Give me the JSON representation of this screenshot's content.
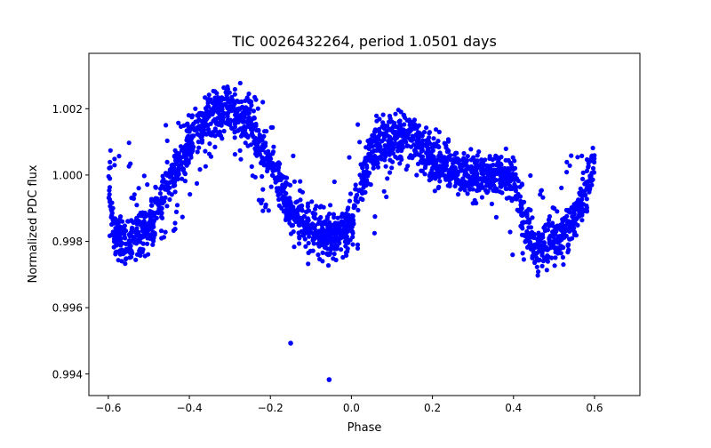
{
  "chart_data": {
    "type": "scatter",
    "title": "TIC 0026432264, period 1.0501 days",
    "xlabel": "Phase",
    "ylabel": "Normalized PDC flux",
    "xlim": [
      -0.648,
      0.712
    ],
    "ylim": [
      0.99335,
      1.00367
    ],
    "xticks": [
      -0.6,
      -0.4,
      -0.2,
      0.0,
      0.2,
      0.4,
      0.6
    ],
    "xtick_labels": [
      "−0.6",
      "−0.4",
      "−0.2",
      "0.0",
      "0.2",
      "0.4",
      "0.6"
    ],
    "yticks": [
      0.994,
      0.996,
      0.998,
      1.0,
      1.002
    ],
    "ytick_labels": [
      "0.994",
      "0.996",
      "0.998",
      "1.000",
      "1.002"
    ],
    "marker_color": "#0000ff",
    "grid": false,
    "trend_note": "dense folded light curve; binned median flux with scatter half-width",
    "trend": {
      "phase": [
        -0.6,
        -0.58,
        -0.55,
        -0.5,
        -0.45,
        -0.4,
        -0.35,
        -0.3,
        -0.25,
        -0.2,
        -0.15,
        -0.1,
        -0.05,
        0.0,
        0.03,
        0.05,
        0.1,
        0.15,
        0.2,
        0.25,
        0.3,
        0.35,
        0.4,
        0.43,
        0.46,
        0.5,
        0.55,
        0.58,
        0.6
      ],
      "flux": [
        0.9998,
        0.998,
        0.9979,
        0.9985,
        0.9998,
        1.001,
        1.0018,
        1.0021,
        1.0015,
        1.0003,
        0.999,
        0.9983,
        0.998,
        0.9985,
        1.0,
        1.0008,
        1.0012,
        1.0012,
        1.0005,
        1.0002,
        1.0,
        1.0,
        0.9998,
        0.9985,
        0.9978,
        0.998,
        0.9987,
        0.9995,
        1.0005
      ],
      "half_width": 0.00065
    },
    "outliers": [
      {
        "x": -0.15,
        "y": 0.99493
      },
      {
        "x": -0.055,
        "y": 0.99383
      }
    ]
  }
}
